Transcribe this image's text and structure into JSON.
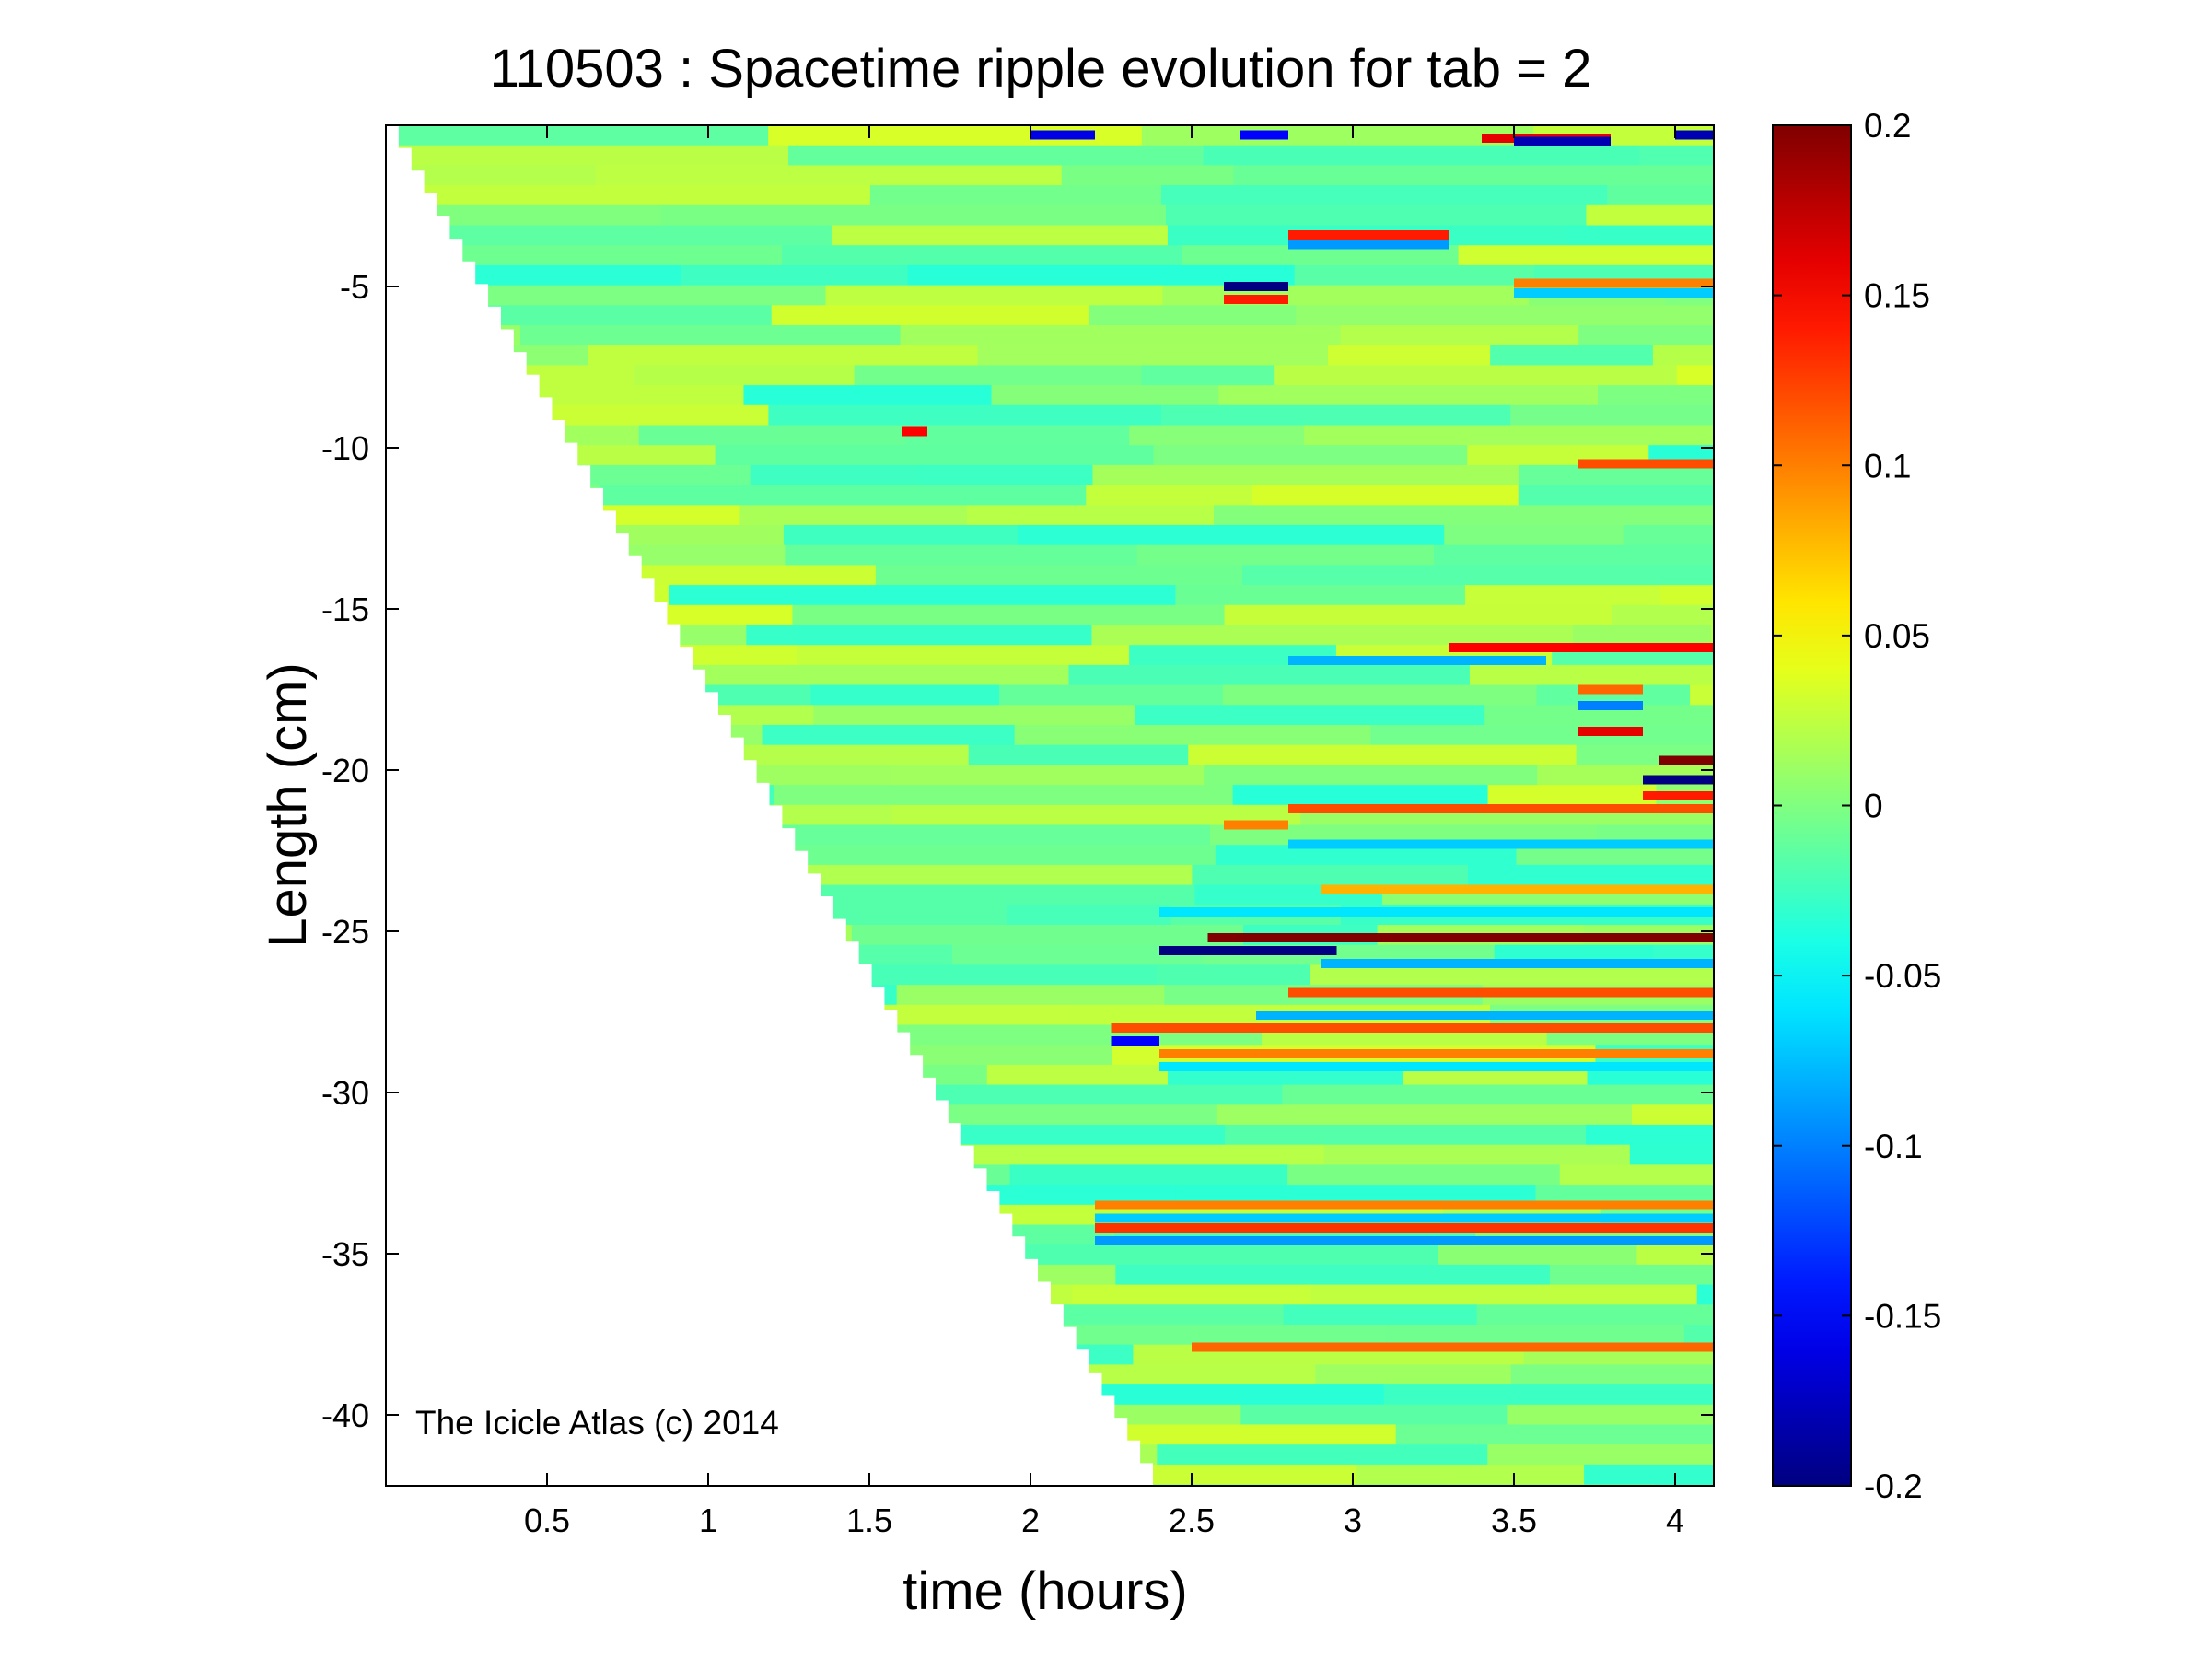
{
  "chart_data": {
    "type": "heatmap",
    "title": "110503 : Spacetime ripple evolution for tab = 2",
    "xlabel": "time (hours)",
    "ylabel": "Length (cm)",
    "xlim": [
      0.0,
      4.12
    ],
    "ylim": [
      -42.2,
      0.0
    ],
    "x_ticks": [
      0.5,
      1,
      1.5,
      2,
      2.5,
      3,
      3.5,
      4
    ],
    "x_tick_labels": [
      "0.5",
      "1",
      "1.5",
      "2",
      "2.5",
      "3",
      "3.5",
      "4"
    ],
    "y_ticks": [
      -5,
      -10,
      -15,
      -20,
      -25,
      -30,
      -35,
      -40
    ],
    "y_tick_labels": [
      "-5",
      "-10",
      "-15",
      "-20",
      "-25",
      "-30",
      "-35",
      "-40"
    ],
    "colorbar": {
      "colormap": "jet",
      "range": [
        -0.2,
        0.2
      ],
      "ticks": [
        0.2,
        0.15,
        0.1,
        0.05,
        0,
        -0.05,
        -0.1,
        -0.15,
        -0.2
      ],
      "tick_labels": [
        "0.2",
        "0.15",
        "0.1",
        "0.05",
        "0",
        "-0.05",
        "-0.1",
        "-0.15",
        "-0.2"
      ]
    },
    "growth_front": {
      "description_note": "data exists only after the icicle tip passed each length",
      "start": {
        "x": 0.0,
        "y": 0.0
      },
      "end": {
        "x": 2.38,
        "y": -42.2
      }
    },
    "stripe_row_height_cm": 0.62,
    "background_value": 0.0,
    "features": [
      {
        "y": -3.4,
        "x0": 2.8,
        "x1": 3.3,
        "value": 0.14
      },
      {
        "y": -3.7,
        "x0": 2.8,
        "x1": 3.3,
        "value": -0.09
      },
      {
        "y": -4.9,
        "x0": 3.5,
        "x1": 4.12,
        "value": 0.1
      },
      {
        "y": -5.2,
        "x0": 3.5,
        "x1": 4.12,
        "value": -0.07
      },
      {
        "y": -5.0,
        "x0": 2.6,
        "x1": 2.8,
        "value": -0.2
      },
      {
        "y": -5.4,
        "x0": 2.6,
        "x1": 2.8,
        "value": 0.14
      },
      {
        "y": -9.5,
        "x0": 1.6,
        "x1": 1.68,
        "value": 0.15
      },
      {
        "y": -10.5,
        "x0": 3.7,
        "x1": 4.12,
        "value": 0.12
      },
      {
        "y": -16.2,
        "x0": 3.3,
        "x1": 4.12,
        "value": 0.15
      },
      {
        "y": -16.6,
        "x0": 2.8,
        "x1": 3.6,
        "value": -0.08
      },
      {
        "y": -17.5,
        "x0": 3.7,
        "x1": 3.9,
        "value": 0.11
      },
      {
        "y": -18.0,
        "x0": 3.7,
        "x1": 3.9,
        "value": -0.1
      },
      {
        "y": -18.8,
        "x0": 3.7,
        "x1": 3.9,
        "value": 0.16
      },
      {
        "y": -19.7,
        "x0": 3.95,
        "x1": 4.12,
        "value": 0.2
      },
      {
        "y": -20.3,
        "x0": 3.9,
        "x1": 4.12,
        "value": -0.2
      },
      {
        "y": -20.8,
        "x0": 3.9,
        "x1": 4.12,
        "value": 0.14
      },
      {
        "y": -21.2,
        "x0": 2.8,
        "x1": 4.12,
        "value": 0.12
      },
      {
        "y": -21.7,
        "x0": 2.6,
        "x1": 2.8,
        "value": 0.1
      },
      {
        "y": -22.3,
        "x0": 2.8,
        "x1": 4.12,
        "value": -0.07
      },
      {
        "y": -23.7,
        "x0": 2.9,
        "x1": 4.12,
        "value": 0.08
      },
      {
        "y": -24.4,
        "x0": 2.4,
        "x1": 4.12,
        "value": -0.06
      },
      {
        "y": -25.2,
        "x0": 2.55,
        "x1": 4.12,
        "value": 0.2
      },
      {
        "y": -25.6,
        "x0": 2.4,
        "x1": 2.95,
        "value": -0.2
      },
      {
        "y": -26.0,
        "x0": 2.9,
        "x1": 4.12,
        "value": -0.08
      },
      {
        "y": -26.9,
        "x0": 2.8,
        "x1": 4.12,
        "value": 0.12
      },
      {
        "y": -27.6,
        "x0": 2.7,
        "x1": 4.12,
        "value": -0.08
      },
      {
        "y": -28.0,
        "x0": 2.25,
        "x1": 4.12,
        "value": 0.12
      },
      {
        "y": -28.4,
        "x0": 2.25,
        "x1": 2.4,
        "value": -0.15
      },
      {
        "y": -28.8,
        "x0": 2.4,
        "x1": 4.12,
        "value": 0.1
      },
      {
        "y": -29.2,
        "x0": 2.4,
        "x1": 4.12,
        "value": -0.06
      },
      {
        "y": -33.5,
        "x0": 2.2,
        "x1": 4.12,
        "value": 0.1
      },
      {
        "y": -33.9,
        "x0": 2.2,
        "x1": 4.12,
        "value": -0.07
      },
      {
        "y": -34.2,
        "x0": 2.2,
        "x1": 4.12,
        "value": 0.13
      },
      {
        "y": -34.6,
        "x0": 2.2,
        "x1": 4.12,
        "value": -0.09
      },
      {
        "y": -37.9,
        "x0": 2.5,
        "x1": 4.12,
        "value": 0.11
      },
      {
        "y": -0.4,
        "x0": 3.4,
        "x1": 3.8,
        "value": 0.16
      },
      {
        "y": -0.5,
        "x0": 3.5,
        "x1": 3.8,
        "value": -0.18
      },
      {
        "y": -0.3,
        "x0": 2.0,
        "x1": 2.2,
        "value": -0.16
      },
      {
        "y": -0.3,
        "x0": 4.0,
        "x1": 4.12,
        "value": -0.18
      },
      {
        "y": -0.3,
        "x0": 2.65,
        "x1": 2.8,
        "value": -0.15
      }
    ]
  },
  "watermark": {
    "text": "The Icicle Atlas (c) 2014"
  }
}
